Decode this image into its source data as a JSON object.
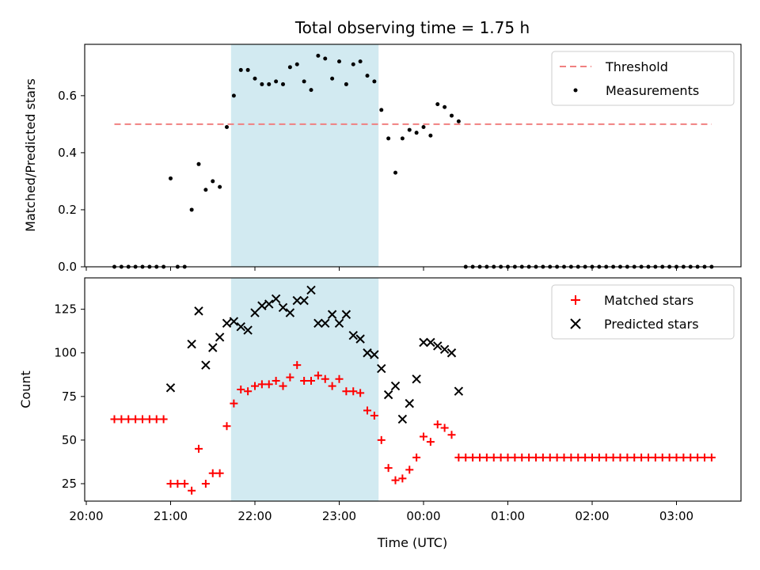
{
  "title": "Total observing time = 1.75 h",
  "colors": {
    "threshold": "#f08080",
    "measurements": "#000000",
    "matched": "#ff0000",
    "predicted": "#000000",
    "span": "#add8e6"
  },
  "chart_data": [
    {
      "type": "scatter",
      "title": "Total observing time = 1.75 h",
      "ylabel": "Matched/Predicted stars",
      "xlim": [
        "20:00",
        "03:45"
      ],
      "ylim": [
        0,
        0.78
      ],
      "yticks": [
        "0.0",
        "0.2",
        "0.4",
        "0.6"
      ],
      "shaded_span": [
        "21:43",
        "23:28"
      ],
      "legend_position": "upper right",
      "series": [
        {
          "name": "Threshold",
          "type": "line",
          "style": "dashed",
          "x": [
            "20:20",
            "03:25"
          ],
          "y": [
            0.5,
            0.5
          ]
        },
        {
          "name": "Measurements",
          "type": "scatter",
          "x": [
            "20:20",
            "20:25",
            "20:30",
            "20:35",
            "20:40",
            "20:45",
            "20:50",
            "20:55",
            "21:00",
            "21:05",
            "21:10",
            "21:15",
            "21:20",
            "21:25",
            "21:30",
            "21:35",
            "21:40",
            "21:45",
            "21:50",
            "21:55",
            "22:00",
            "22:05",
            "22:10",
            "22:15",
            "22:20",
            "22:25",
            "22:30",
            "22:35",
            "22:40",
            "22:45",
            "22:50",
            "22:55",
            "23:00",
            "23:05",
            "23:10",
            "23:15",
            "23:20",
            "23:25",
            "23:30",
            "23:35",
            "23:40",
            "23:45",
            "23:50",
            "23:55",
            "00:00",
            "00:05",
            "00:10",
            "00:15",
            "00:20",
            "00:25",
            "00:30",
            "00:35",
            "00:40",
            "00:45",
            "00:50",
            "00:55",
            "01:00",
            "01:05",
            "01:10",
            "01:15",
            "01:20",
            "01:25",
            "01:30",
            "01:35",
            "01:40",
            "01:45",
            "01:50",
            "01:55",
            "02:00",
            "02:05",
            "02:10",
            "02:15",
            "02:20",
            "02:25",
            "02:30",
            "02:35",
            "02:40",
            "02:45",
            "02:50",
            "02:55",
            "03:00",
            "03:05",
            "03:10",
            "03:15",
            "03:20",
            "03:25"
          ],
          "y": [
            0,
            0,
            0,
            0,
            0,
            0,
            0,
            0,
            0.31,
            0,
            0,
            0.2,
            0.36,
            0.27,
            0.3,
            0.28,
            0.49,
            0.6,
            0.69,
            0.69,
            0.66,
            0.64,
            0.64,
            0.65,
            0.64,
            0.7,
            0.71,
            0.65,
            0.62,
            0.74,
            0.73,
            0.66,
            0.72,
            0.64,
            0.71,
            0.72,
            0.67,
            0.65,
            0.55,
            0.45,
            0.33,
            0.45,
            0.48,
            0.47,
            0.49,
            0.46,
            0.57,
            0.56,
            0.53,
            0.51,
            0,
            0,
            0,
            0,
            0,
            0,
            0,
            0,
            0,
            0,
            0,
            0,
            0,
            0,
            0,
            0,
            0,
            0,
            0,
            0,
            0,
            0,
            0,
            0,
            0,
            0,
            0,
            0,
            0,
            0,
            0,
            0,
            0,
            0,
            0,
            0
          ]
        }
      ]
    },
    {
      "type": "scatter",
      "xlabel": "Time (UTC)",
      "ylabel": "Count",
      "xlim": [
        "20:00",
        "03:45"
      ],
      "ylim": [
        15,
        143
      ],
      "xticks": [
        "20:00",
        "21:00",
        "22:00",
        "23:00",
        "00:00",
        "01:00",
        "02:00",
        "03:00"
      ],
      "yticks": [
        "25",
        "50",
        "75",
        "100",
        "125"
      ],
      "shaded_span": [
        "21:43",
        "23:28"
      ],
      "legend_position": "upper right",
      "series": [
        {
          "name": "Matched stars",
          "marker": "+",
          "x": [
            "20:20",
            "20:25",
            "20:30",
            "20:35",
            "20:40",
            "20:45",
            "20:50",
            "20:55",
            "21:00",
            "21:05",
            "21:10",
            "21:15",
            "21:20",
            "21:25",
            "21:30",
            "21:35",
            "21:40",
            "21:45",
            "21:50",
            "21:55",
            "22:00",
            "22:05",
            "22:10",
            "22:15",
            "22:20",
            "22:25",
            "22:30",
            "22:35",
            "22:40",
            "22:45",
            "22:50",
            "22:55",
            "23:00",
            "23:05",
            "23:10",
            "23:15",
            "23:20",
            "23:25",
            "23:30",
            "23:35",
            "23:40",
            "23:45",
            "23:50",
            "23:55",
            "00:00",
            "00:05",
            "00:10",
            "00:15",
            "00:20",
            "00:25",
            "00:30",
            "00:35",
            "00:40",
            "00:45",
            "00:50",
            "00:55",
            "01:00",
            "01:05",
            "01:10",
            "01:15",
            "01:20",
            "01:25",
            "01:30",
            "01:35",
            "01:40",
            "01:45",
            "01:50",
            "01:55",
            "02:00",
            "02:05",
            "02:10",
            "02:15",
            "02:20",
            "02:25",
            "02:30",
            "02:35",
            "02:40",
            "02:45",
            "02:50",
            "02:55",
            "03:00",
            "03:05",
            "03:10",
            "03:15",
            "03:20",
            "03:25"
          ],
          "y": [
            62,
            62,
            62,
            62,
            62,
            62,
            62,
            62,
            25,
            25,
            25,
            21,
            45,
            25,
            31,
            31,
            58,
            71,
            79,
            78,
            81,
            82,
            82,
            84,
            81,
            86,
            93,
            84,
            84,
            87,
            85,
            81,
            85,
            78,
            78,
            77,
            67,
            64,
            50,
            34,
            27,
            28,
            33,
            40,
            52,
            49,
            59,
            57,
            53,
            40,
            40,
            40,
            40,
            40,
            40,
            40,
            40,
            40,
            40,
            40,
            40,
            40,
            40,
            40,
            40,
            40,
            40,
            40,
            40,
            40,
            40,
            40,
            40,
            40,
            40,
            40,
            40,
            40,
            40,
            40,
            40,
            40,
            40,
            40,
            40,
            40
          ]
        },
        {
          "name": "Predicted stars",
          "marker": "x",
          "x": [
            "21:00",
            "21:15",
            "21:20",
            "21:25",
            "21:30",
            "21:35",
            "21:40",
            "21:45",
            "21:50",
            "21:55",
            "22:00",
            "22:05",
            "22:10",
            "22:15",
            "22:20",
            "22:25",
            "22:30",
            "22:35",
            "22:40",
            "22:45",
            "22:50",
            "22:55",
            "23:00",
            "23:05",
            "23:10",
            "23:15",
            "23:20",
            "23:25",
            "23:30",
            "23:35",
            "23:40",
            "23:45",
            "23:50",
            "23:55",
            "00:00",
            "00:05",
            "00:10",
            "00:15",
            "00:20",
            "00:25"
          ],
          "y": [
            80,
            105,
            124,
            93,
            103,
            109,
            117,
            118,
            115,
            113,
            123,
            127,
            128,
            131,
            126,
            123,
            130,
            130,
            136,
            117,
            117,
            122,
            117,
            122,
            110,
            108,
            100,
            99,
            91,
            76,
            81,
            62,
            71,
            85,
            106,
            106,
            104,
            102,
            100,
            78
          ]
        }
      ]
    }
  ]
}
